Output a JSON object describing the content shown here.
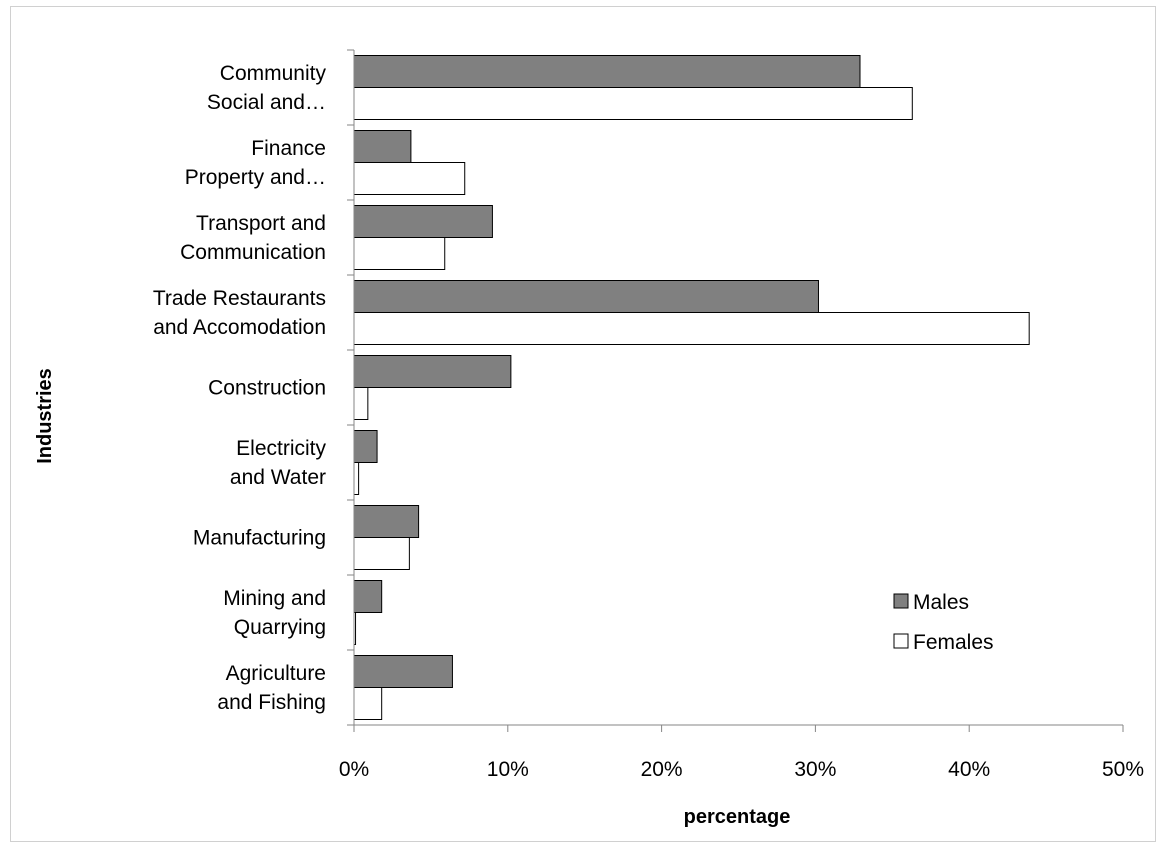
{
  "chart_data": {
    "type": "bar",
    "orientation": "horizontal",
    "title": "",
    "xlabel": "percentage",
    "ylabel": "Industries",
    "xlim": [
      0,
      0.5
    ],
    "x_ticks": [
      0,
      0.1,
      0.2,
      0.3,
      0.4,
      0.5
    ],
    "x_tick_labels": [
      "0%",
      "10%",
      "20%",
      "30%",
      "40%",
      "50%"
    ],
    "grid": false,
    "legend_position": "bottom-right",
    "categories": [
      [
        "Community",
        "Social and…"
      ],
      [
        "Finance",
        "Property and…"
      ],
      [
        "Transport and",
        "Communication"
      ],
      [
        "Trade Restaurants",
        "and Accomodation"
      ],
      [
        "Construction"
      ],
      [
        "Electricity",
        "and Water"
      ],
      [
        "Manufacturing"
      ],
      [
        "Mining and",
        "Quarrying"
      ],
      [
        "Agriculture",
        "and Fishing"
      ]
    ],
    "series": [
      {
        "name": "Males",
        "color": "#808080",
        "values": [
          0.329,
          0.037,
          0.09,
          0.302,
          0.102,
          0.015,
          0.042,
          0.018,
          0.064
        ]
      },
      {
        "name": "Females",
        "color": "#ffffff",
        "values": [
          0.363,
          0.072,
          0.059,
          0.439,
          0.009,
          0.003,
          0.036,
          0.001,
          0.018
        ]
      }
    ]
  }
}
